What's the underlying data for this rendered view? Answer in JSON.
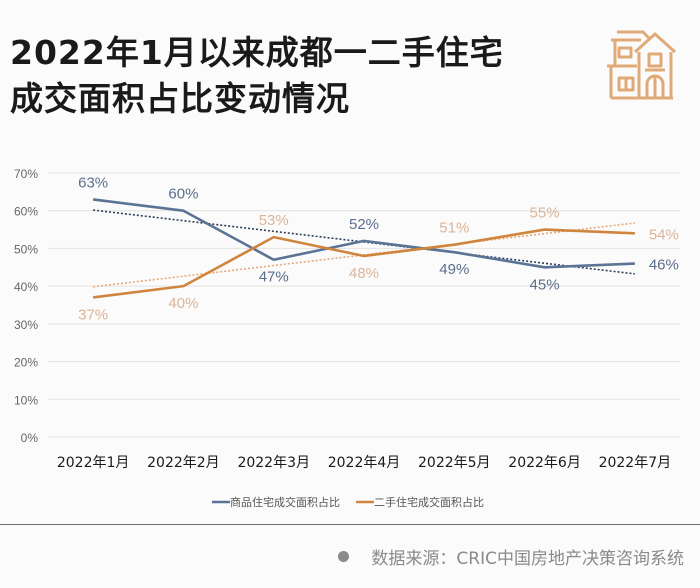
{
  "header": {
    "title_line1": "2022年1月以来成都一二手住宅",
    "title_line2": "成交面积占比变动情况",
    "icon": "house-icon"
  },
  "colors": {
    "new_home": "#5b7394",
    "second_hand": "#d0853f",
    "new_label": "#5b6f8c",
    "second_label": "#d9b49a",
    "icon": "#e0aa78",
    "grid": "#e3e3e3",
    "axis_text": "#666666"
  },
  "chart_data": {
    "type": "line",
    "title": "2022年1月以来成都一二手住宅成交面积占比变动情况",
    "xlabel": "",
    "ylabel": "",
    "categories": [
      "2022年1月",
      "2022年2月",
      "2022年3月",
      "2022年4月",
      "2022年5月",
      "2022年6月",
      "2022年7月"
    ],
    "ylim": [
      0,
      70
    ],
    "yticks": [
      0,
      10,
      20,
      30,
      40,
      50,
      60,
      70
    ],
    "ytick_labels": [
      "0%",
      "10%",
      "20%",
      "30%",
      "40%",
      "50%",
      "60%",
      "70%"
    ],
    "grid": true,
    "legend_position": "bottom",
    "series": [
      {
        "name": "商品住宅成交面积占比",
        "values": [
          63,
          60,
          47,
          52,
          49,
          45,
          46
        ],
        "data_labels": [
          "63%",
          "60%",
          "47%",
          "52%",
          "49%",
          "45%",
          "46%"
        ],
        "trendline": "linear"
      },
      {
        "name": "二手住宅成交面积占比",
        "values": [
          37,
          40,
          53,
          48,
          51,
          55,
          54
        ],
        "data_labels": [
          "37%",
          "40%",
          "53%",
          "48%",
          "51%",
          "55%",
          "54%"
        ],
        "trendline": "linear"
      }
    ]
  },
  "footer": {
    "source": "数据来源：CRIC中国房地产决策咨询系统"
  }
}
